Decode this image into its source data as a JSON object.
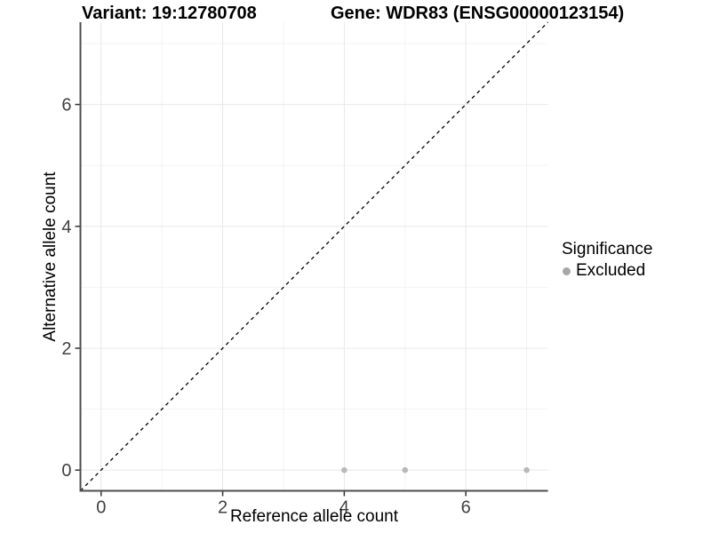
{
  "header": {
    "title_left": "Variant: 19:12780708",
    "title_right": "Gene: WDR83 (ENSG00000123154)"
  },
  "legend": {
    "title": "Significance",
    "items": [
      {
        "label": "Excluded",
        "color": "#a8a8a8",
        "marker": "circle-icon"
      }
    ]
  },
  "colors": {
    "background": "#ffffff",
    "grid_major": "#e8e8e8",
    "grid_minor": "#f3f3f3",
    "axis_line": "#4d4d4d",
    "tick_mark": "#333333",
    "tick_label": "#404040",
    "text": "#000000",
    "point": "#b9b9b9",
    "identity_line": "#000000"
  },
  "chart_data": {
    "type": "scatter",
    "title": "Variant: 19:12780708 | Gene: WDR83 (ENSG00000123154)",
    "xlabel": "Reference allele count",
    "ylabel": "Alternative allele count",
    "xlim": [
      -0.34,
      7.35
    ],
    "ylim": [
      -0.34,
      7.35
    ],
    "x_ticks": [
      0,
      2,
      4,
      6
    ],
    "y_ticks": [
      0,
      2,
      4,
      6
    ],
    "x_minor_ticks": [
      1,
      3,
      5,
      7
    ],
    "y_minor_ticks": [
      1,
      3,
      5,
      7
    ],
    "grid": "major and minor gridlines, light gray on white panel",
    "legend_position": "right-middle",
    "series": [
      {
        "name": "Excluded",
        "color": "#b9b9b9",
        "points": [
          {
            "x": 4,
            "y": 0
          },
          {
            "x": 5,
            "y": 0
          },
          {
            "x": 7,
            "y": 0
          }
        ]
      }
    ],
    "reference_line": {
      "equation": "y = x",
      "style": "dashed",
      "color": "#000000"
    }
  }
}
